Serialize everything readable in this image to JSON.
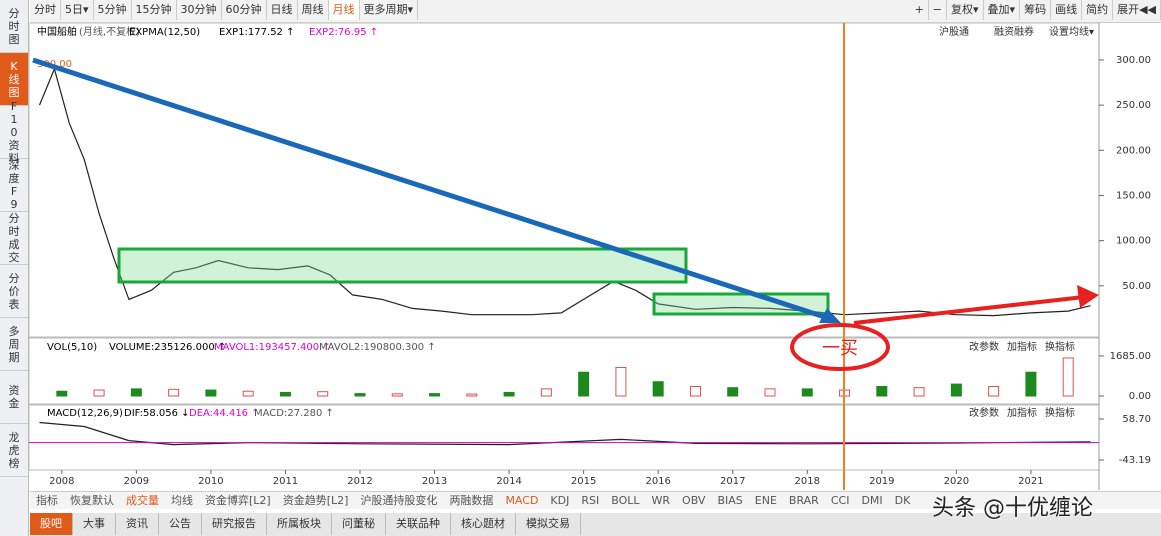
{
  "toolbar": {
    "left": [
      "分时",
      "5日▾",
      "5分钟",
      "15分钟",
      "30分钟",
      "60分钟",
      "日线",
      "周线",
      "月线",
      "更多周期▾"
    ],
    "right": [
      "+",
      "−",
      "复权▾",
      "叠加▾",
      "筹码",
      "画线",
      "简约",
      "展开◀◀"
    ]
  },
  "sidebar": [
    "分时图",
    "K线图",
    "F10资料",
    "深度F9",
    "分时成交",
    "分价表",
    "多周期",
    "资金",
    "龙虎榜"
  ],
  "header": {
    "stock": "中国船舶",
    "period": "(月线,不复权)",
    "indicator": "EXPMA(12,50)",
    "exp1": "EXP1:177.52 ↑",
    "exp2": "EXP2:76.95 ↑",
    "links": [
      "沪股通",
      "融资融券",
      "设置均线▾"
    ],
    "max_label": "300.00"
  },
  "price_pane": {
    "ylim": [
      0,
      342
    ],
    "yticks": [
      {
        "value": 300,
        "label": "300.00"
      },
      {
        "value": 250,
        "label": "250.00"
      },
      {
        "value": 200,
        "label": "200.00"
      },
      {
        "value": 150,
        "label": "150.00"
      },
      {
        "value": 100,
        "label": "100.00"
      },
      {
        "value": 50,
        "label": "50.00"
      }
    ],
    "x": [
      2007.7,
      2007.9,
      2008.1,
      2008.3,
      2008.5,
      2008.7,
      2008.9,
      2009.2,
      2009.5,
      2009.8,
      2010.1,
      2010.5,
      2010.9,
      2011.3,
      2011.6,
      2011.9,
      2012.3,
      2012.7,
      2013.1,
      2013.5,
      2013.9,
      2014.3,
      2014.7,
      2015.0,
      2015.4,
      2015.7,
      2016.0,
      2016.5,
      2017.0,
      2017.5,
      2018.0,
      2018.5,
      2019.0,
      2019.5,
      2020.0,
      2020.5,
      2021.0,
      2021.5,
      2021.8
    ],
    "values": [
      250,
      290,
      230,
      190,
      130,
      80,
      35,
      45,
      65,
      70,
      78,
      70,
      68,
      72,
      62,
      40,
      35,
      25,
      22,
      18,
      18,
      18,
      20,
      35,
      55,
      45,
      30,
      24,
      26,
      25,
      22,
      18,
      20,
      22,
      18,
      17,
      20,
      22,
      28
    ],
    "color": "#222222"
  },
  "volume_pane": {
    "title": "VOL(5,10)",
    "volume": "VOLUME:235126.000 ↑",
    "mavol1": "MAVOL1:193457.400 ↑",
    "mavol2": "MAVOL2:190800.300 ↑",
    "buttons": [
      "改参数",
      "加指标",
      "换指标"
    ],
    "ylim": [
      0,
      2440
    ],
    "yticks": [
      {
        "value": 1685,
        "label": "1685.00"
      },
      {
        "value": 0,
        "label": "0.00"
      }
    ],
    "x": [
      2008,
      2008.5,
      2009,
      2009.5,
      2010,
      2010.5,
      2011,
      2011.5,
      2012,
      2012.5,
      2013,
      2013.5,
      2014,
      2014.5,
      2015,
      2015.5,
      2016,
      2016.5,
      2017,
      2017.5,
      2018,
      2018.5,
      2019,
      2019.5,
      2020,
      2020.5,
      2021,
      2021.5
    ],
    "values": [
      200,
      250,
      300,
      280,
      250,
      200,
      150,
      180,
      100,
      90,
      100,
      80,
      150,
      300,
      1000,
      1200,
      600,
      400,
      350,
      300,
      300,
      250,
      400,
      350,
      500,
      400,
      1000,
      1600
    ],
    "color": "#1e8a1e"
  },
  "macd_pane": {
    "title": "MACD(12,26,9)",
    "dif": "DIF:58.056 ↓",
    "dea": "DEA:44.416 ↑",
    "macd": "MACD:27.280 ↑",
    "buttons": [
      "改参数",
      "加指标",
      "换指标"
    ],
    "ylim": [
      -55.6,
      105.9
    ],
    "yticks": [
      {
        "value": 58.7,
        "label": "58.70"
      },
      {
        "value": -43.19,
        "label": "-43.19"
      }
    ],
    "x": [
      2007.7,
      2008.3,
      2008.9,
      2009.5,
      2010.5,
      2012,
      2014,
      2015.5,
      2016.5,
      2018,
      2020,
      2021.8
    ],
    "values": [
      50,
      40,
      5,
      -5,
      0,
      -3,
      -5,
      8,
      -2,
      -3,
      -1,
      2
    ],
    "color": "#222222"
  },
  "xaxis": {
    "xlim": [
      2007.6,
      2021.9
    ],
    "xticks": [
      2008,
      2009,
      2010,
      2011,
      2012,
      2013,
      2014,
      2015,
      2016,
      2017,
      2018,
      2019,
      2020,
      2021
    ]
  },
  "annotation": "一买",
  "watermark": "头条 @十优缠论",
  "indicator_tabs": [
    "指标",
    "恢复默认",
    "成交量",
    "均线",
    "资金博弈[L2]",
    "资金趋势[L2]",
    "沪股通持股变化",
    "两融数据",
    "MACD",
    "KDJ",
    "RSI",
    "BOLL",
    "WR",
    "OBV",
    "BIAS",
    "ENE",
    "BRAR",
    "CCI",
    "DMI",
    "DK"
  ],
  "bottom_tabs": [
    "股吧",
    "大事",
    "资讯",
    "公告",
    "研究报告",
    "所属板块",
    "问董秘",
    "关联品种",
    "核心题材",
    "模拟交易"
  ]
}
